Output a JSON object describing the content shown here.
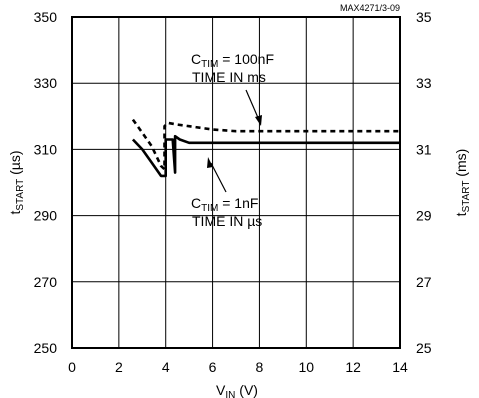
{
  "chart_data": {
    "type": "line",
    "chart_code": "MAX4271/3-09",
    "x_axis": {
      "label_main": "V",
      "label_sub": "IN",
      "label_unit": " (V)",
      "range": [
        0,
        14
      ],
      "ticks": [
        "0",
        "2",
        "4",
        "6",
        "8",
        "10",
        "12",
        "14"
      ]
    },
    "y_axis_left": {
      "label_main": "t",
      "label_sub": "START",
      "label_unit": " (µs)",
      "range": [
        250,
        350
      ],
      "ticks": [
        "250",
        "270",
        "290",
        "310",
        "330",
        "350"
      ]
    },
    "y_axis_right": {
      "label_main": "t",
      "label_sub": "START",
      "label_unit": " (ms)",
      "range": [
        25,
        35
      ],
      "ticks": [
        "25",
        "27",
        "29",
        "31",
        "33",
        "35"
      ]
    },
    "grid": true,
    "annotations": {
      "upper": {
        "line1_main": "C",
        "line1_sub": "TIM",
        "line1_rest": " = 100nF",
        "line2": "TIME IN ms"
      },
      "lower": {
        "line1_main": "C",
        "line1_sub": "TIM",
        "line1_rest": " = 1nF",
        "line2": "TIME IN µs"
      }
    },
    "series": [
      {
        "style": "dashed",
        "axis": "right",
        "x": [
          2.6,
          3.0,
          3.4,
          3.8,
          3.95,
          3.95,
          4.1,
          4.5,
          5.0,
          6.0,
          7.0,
          8.0,
          10.0,
          12.0,
          14.0
        ],
        "y": [
          31.9,
          31.5,
          31.1,
          30.5,
          30.4,
          31.7,
          31.8,
          31.75,
          31.7,
          31.6,
          31.55,
          31.55,
          31.55,
          31.55,
          31.55
        ]
      },
      {
        "style": "solid",
        "axis": "left",
        "x": [
          2.6,
          3.0,
          3.4,
          3.8,
          4.0,
          4.0,
          4.3,
          4.4,
          4.4,
          4.6,
          5.0,
          6.0,
          8.0,
          10.0,
          12.0,
          14.0
        ],
        "y": [
          313,
          310,
          306,
          302,
          302,
          313,
          313,
          303,
          314,
          313,
          312,
          312,
          312,
          312,
          312,
          312
        ]
      }
    ]
  }
}
